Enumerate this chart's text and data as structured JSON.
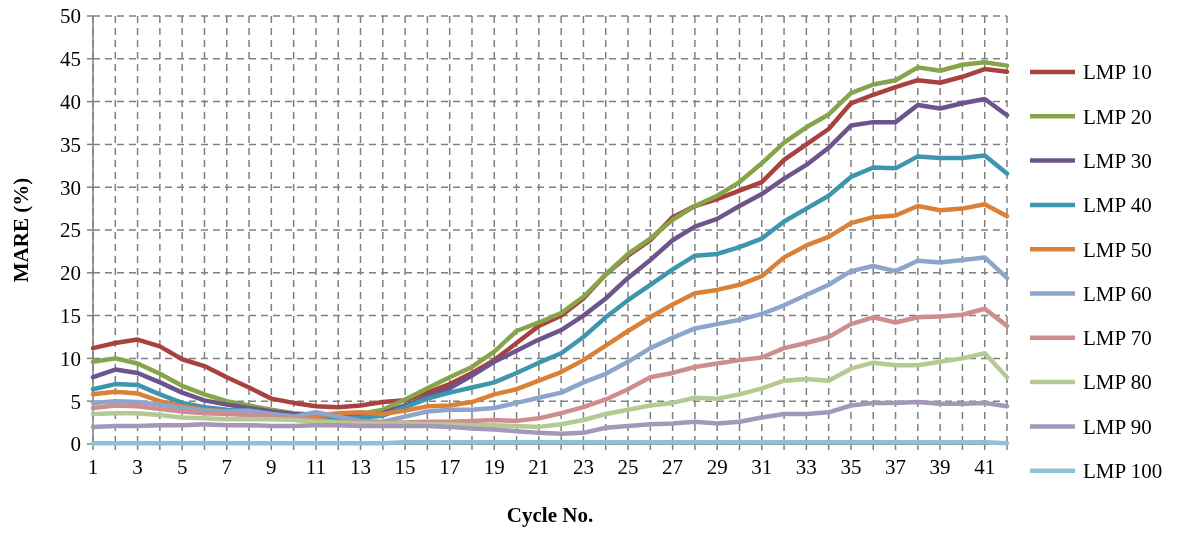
{
  "chart_data": {
    "type": "line",
    "xlabel": "Cycle No.",
    "ylabel": "MARE (%)",
    "x": [
      1,
      2,
      3,
      4,
      5,
      6,
      7,
      8,
      9,
      10,
      11,
      12,
      13,
      14,
      15,
      16,
      17,
      18,
      19,
      20,
      21,
      22,
      23,
      24,
      25,
      26,
      27,
      28,
      29,
      30,
      31,
      32,
      33,
      34,
      35,
      36,
      37,
      38,
      39,
      40,
      41,
      42
    ],
    "xlim": [
      1,
      42
    ],
    "xticks": [
      1,
      {
        "value": 2,
        "label": null
      },
      3,
      {
        "value": 4,
        "label": null
      },
      5,
      {
        "value": 6,
        "label": null
      },
      7,
      {
        "value": 8,
        "label": null
      },
      9,
      {
        "value": 10,
        "label": null
      },
      11,
      {
        "value": 12,
        "label": null
      },
      13,
      {
        "value": 14,
        "label": null
      },
      15,
      {
        "value": 16,
        "label": null
      },
      17,
      {
        "value": 18,
        "label": null
      },
      19,
      {
        "value": 20,
        "label": null
      },
      21,
      {
        "value": 22,
        "label": null
      },
      23,
      {
        "value": 24,
        "label": null
      },
      25,
      {
        "value": 26,
        "label": null
      },
      27,
      {
        "value": 28,
        "label": null
      },
      29,
      {
        "value": 30,
        "label": null
      },
      31,
      {
        "value": 32,
        "label": null
      },
      33,
      {
        "value": 34,
        "label": null
      },
      35,
      {
        "value": 36,
        "label": null
      },
      37,
      {
        "value": 38,
        "label": null
      },
      39,
      {
        "value": 40,
        "label": null
      },
      41,
      {
        "value": 42,
        "label": null
      }
    ],
    "ylim": [
      0,
      50
    ],
    "yticks": [
      0,
      5,
      10,
      15,
      20,
      25,
      30,
      35,
      40,
      45,
      50
    ],
    "grid": true,
    "legend": "right",
    "marker": "none",
    "line_style": "solid",
    "series": [
      {
        "name": "LMP 10",
        "color": "#a8423f",
        "values": [
          11.2,
          11.8,
          12.2,
          11.4,
          9.9,
          9.1,
          7.8,
          6.6,
          5.3,
          4.8,
          4.4,
          4.3,
          4.5,
          4.9,
          5.1,
          6.0,
          7.0,
          8.3,
          9.8,
          11.8,
          13.8,
          15.0,
          17.0,
          19.8,
          22.0,
          23.8,
          26.5,
          27.8,
          28.6,
          29.6,
          30.6,
          33.2,
          35.0,
          36.8,
          39.8,
          40.8,
          41.7,
          42.5,
          42.2,
          42.9,
          43.8,
          43.5
        ]
      },
      {
        "name": "LMP 20",
        "color": "#86a44a",
        "values": [
          9.6,
          10.0,
          9.4,
          8.2,
          6.8,
          5.8,
          5.0,
          4.5,
          4.0,
          3.6,
          3.4,
          3.3,
          3.5,
          4.0,
          5.2,
          6.5,
          7.8,
          9.0,
          10.8,
          13.2,
          14.2,
          15.3,
          17.2,
          19.8,
          22.2,
          24.0,
          26.2,
          27.8,
          29.0,
          30.6,
          32.8,
          35.2,
          37.0,
          38.5,
          41.0,
          42.0,
          42.5,
          44.0,
          43.6,
          44.3,
          44.6,
          44.2
        ]
      },
      {
        "name": "LMP 30",
        "color": "#6e548d",
        "values": [
          7.8,
          8.7,
          8.3,
          7.2,
          6.0,
          5.1,
          4.6,
          4.2,
          3.8,
          3.5,
          3.4,
          3.3,
          3.3,
          3.6,
          4.5,
          5.5,
          6.5,
          8.0,
          9.6,
          10.9,
          12.2,
          13.3,
          15.0,
          17.0,
          19.4,
          21.5,
          23.8,
          25.4,
          26.3,
          27.8,
          29.2,
          31.0,
          32.6,
          34.6,
          37.2,
          37.6,
          37.6,
          39.6,
          39.2,
          39.8,
          40.3,
          38.4
        ]
      },
      {
        "name": "LMP 40",
        "color": "#3d96ae",
        "values": [
          6.4,
          7.0,
          6.9,
          5.8,
          4.8,
          4.3,
          4.0,
          3.8,
          3.5,
          3.2,
          3.1,
          3.0,
          3.1,
          3.3,
          4.3,
          5.3,
          6.0,
          6.6,
          7.2,
          8.3,
          9.5,
          10.6,
          12.5,
          14.8,
          16.8,
          18.6,
          20.4,
          22.0,
          22.2,
          23.0,
          24.0,
          26.0,
          27.5,
          29.0,
          31.2,
          32.3,
          32.2,
          33.6,
          33.4,
          33.4,
          33.7,
          31.6
        ]
      },
      {
        "name": "LMP 50",
        "color": "#da8137",
        "values": [
          5.8,
          6.1,
          5.9,
          5.0,
          4.4,
          4.0,
          3.8,
          3.7,
          3.4,
          3.2,
          3.3,
          3.6,
          3.7,
          3.5,
          3.9,
          4.4,
          4.5,
          4.9,
          5.8,
          6.4,
          7.4,
          8.4,
          9.8,
          11.5,
          13.2,
          14.8,
          16.3,
          17.6,
          18.0,
          18.6,
          19.6,
          21.8,
          23.2,
          24.2,
          25.8,
          26.5,
          26.7,
          27.8,
          27.3,
          27.5,
          28.0,
          26.6
        ]
      },
      {
        "name": "LMP 60",
        "color": "#8ea5cb",
        "values": [
          4.8,
          5.0,
          4.9,
          4.6,
          4.2,
          3.9,
          3.8,
          3.9,
          3.5,
          3.2,
          3.7,
          3.2,
          2.7,
          2.6,
          3.2,
          3.8,
          4.0,
          4.0,
          4.2,
          4.8,
          5.4,
          6.0,
          7.2,
          8.2,
          9.6,
          11.2,
          12.4,
          13.5,
          14.0,
          14.5,
          15.2,
          16.2,
          17.4,
          18.6,
          20.2,
          20.8,
          20.2,
          21.4,
          21.2,
          21.5,
          21.8,
          19.4
        ]
      },
      {
        "name": "LMP 70",
        "color": "#ce8e8d",
        "values": [
          4.2,
          4.5,
          4.4,
          4.1,
          3.8,
          3.6,
          3.5,
          3.4,
          3.2,
          3.0,
          2.8,
          2.6,
          2.5,
          2.5,
          2.5,
          2.6,
          2.6,
          2.7,
          2.8,
          2.7,
          3.0,
          3.6,
          4.3,
          5.2,
          6.4,
          7.8,
          8.3,
          9.0,
          9.4,
          9.8,
          10.1,
          11.2,
          11.8,
          12.5,
          14.0,
          14.8,
          14.2,
          14.8,
          14.9,
          15.1,
          15.8,
          13.8
        ]
      },
      {
        "name": "LMP 80",
        "color": "#b5ca92",
        "values": [
          3.5,
          3.6,
          3.6,
          3.4,
          3.1,
          3.0,
          2.9,
          2.9,
          2.9,
          2.8,
          2.6,
          2.5,
          2.4,
          2.4,
          2.4,
          2.3,
          2.3,
          2.2,
          2.2,
          2.1,
          2.0,
          2.3,
          2.8,
          3.5,
          4.0,
          4.5,
          4.8,
          5.4,
          5.3,
          5.8,
          6.5,
          7.4,
          7.6,
          7.4,
          8.8,
          9.5,
          9.2,
          9.2,
          9.6,
          10.0,
          10.6,
          7.8
        ]
      },
      {
        "name": "LMP 90",
        "color": "#a597b8",
        "values": [
          2.0,
          2.1,
          2.1,
          2.2,
          2.2,
          2.3,
          2.2,
          2.2,
          2.1,
          2.1,
          2.2,
          2.2,
          2.1,
          2.1,
          2.1,
          2.1,
          2.0,
          1.8,
          1.7,
          1.5,
          1.3,
          1.2,
          1.3,
          1.9,
          2.1,
          2.3,
          2.4,
          2.6,
          2.4,
          2.6,
          3.1,
          3.5,
          3.5,
          3.7,
          4.5,
          4.8,
          4.8,
          4.9,
          4.7,
          4.7,
          4.8,
          4.4
        ]
      },
      {
        "name": "LMP 100",
        "color": "#8ec1d3",
        "values": [
          0.1,
          0.1,
          0.1,
          0.1,
          0.1,
          0.1,
          0.1,
          0.1,
          0.1,
          0.1,
          0.1,
          0.1,
          0.1,
          0.1,
          0.2,
          0.2,
          0.2,
          0.2,
          0.2,
          0.2,
          0.2,
          0.2,
          0.2,
          0.2,
          0.2,
          0.2,
          0.2,
          0.2,
          0.2,
          0.2,
          0.2,
          0.2,
          0.2,
          0.2,
          0.2,
          0.2,
          0.2,
          0.2,
          0.2,
          0.2,
          0.2,
          0.1
        ]
      }
    ]
  }
}
